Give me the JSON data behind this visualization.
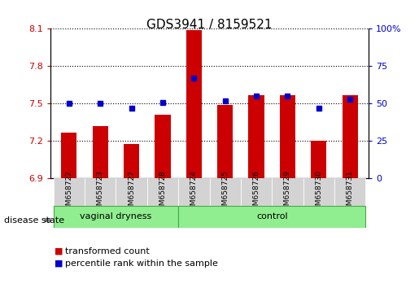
{
  "title": "GDS3941 / 8159521",
  "samples": [
    "GSM658722",
    "GSM658723",
    "GSM658727",
    "GSM658728",
    "GSM658724",
    "GSM658725",
    "GSM658726",
    "GSM658729",
    "GSM658730",
    "GSM658731"
  ],
  "red_values": [
    7.27,
    7.32,
    7.18,
    7.41,
    8.09,
    7.49,
    7.57,
    7.57,
    7.2,
    7.57
  ],
  "blue_values": [
    50,
    50,
    47,
    51,
    67,
    52,
    55,
    55,
    47,
    53
  ],
  "group1_label": "vaginal dryness",
  "group1_count": 4,
  "group2_label": "control",
  "group2_count": 6,
  "disease_state_label": "disease state",
  "legend_red": "transformed count",
  "legend_blue": "percentile rank within the sample",
  "ylim_left": [
    6.9,
    8.1
  ],
  "ylim_right": [
    0,
    100
  ],
  "yticks_left": [
    6.9,
    7.2,
    7.5,
    7.8,
    8.1
  ],
  "yticks_right": [
    0,
    25,
    50,
    75,
    100
  ],
  "bar_color": "#cc0000",
  "marker_color": "#0000cc",
  "bg_plot": "#ffffff",
  "group_bg": "#90ee90",
  "grid_color": "#000000"
}
